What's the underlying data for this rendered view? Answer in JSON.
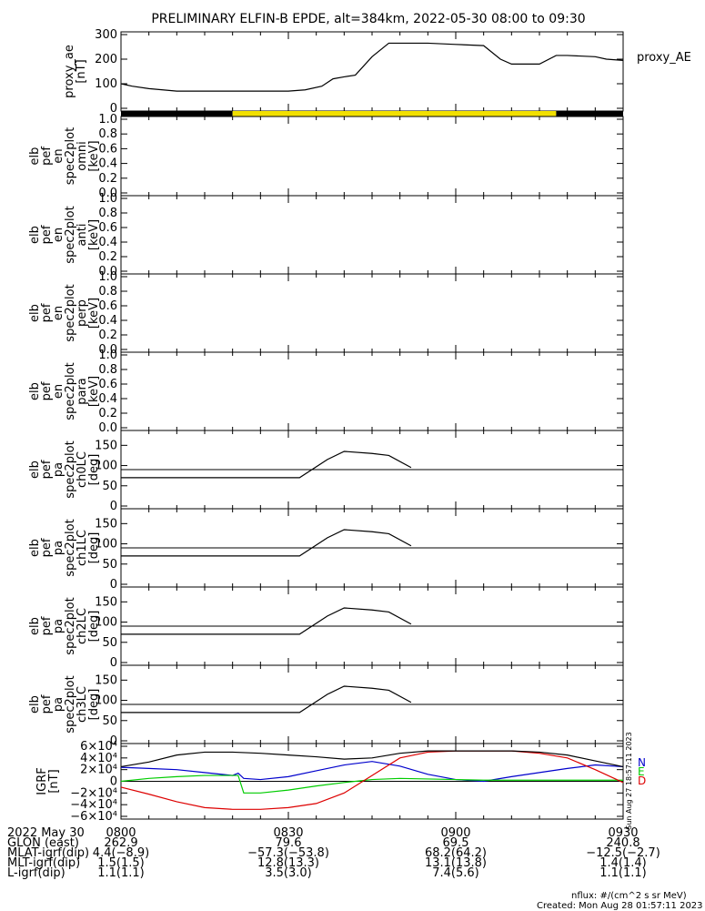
{
  "title": "PRELIMINARY ELFIN-B EPDE, alt=384km, 2022-05-30 08:00 to 09:30",
  "colors": {
    "axis": "#000000",
    "science_bar": "#f2e000",
    "no_science_bar": "#000000",
    "field_N": "#0000cc",
    "field_E": "#00cc00",
    "field_D": "#dd0000",
    "field_total": "#000000"
  },
  "chart_data": [
    {
      "id": "proxy_ae",
      "type": "line",
      "ylabel": [
        "proxy_ae",
        "[nT]"
      ],
      "legend": "proxy_AE",
      "ylim": [
        0,
        300
      ],
      "yticks": [
        0,
        100,
        200,
        300
      ],
      "x": [
        0,
        2,
        5,
        10,
        15,
        20,
        25,
        30,
        33,
        36,
        38,
        40,
        42,
        45,
        48,
        50,
        52,
        55,
        60,
        65,
        68,
        70,
        72,
        75,
        78,
        80,
        85,
        87,
        90
      ],
      "y": [
        100,
        90,
        80,
        70,
        70,
        70,
        70,
        70,
        75,
        90,
        120,
        128,
        135,
        210,
        265,
        265,
        265,
        265,
        260,
        255,
        200,
        180,
        180,
        180,
        215,
        215,
        210,
        200,
        195
      ]
    },
    {
      "id": "science_bar",
      "type": "bar",
      "segments": [
        {
          "x0": 0,
          "x1": 20,
          "state": "black"
        },
        {
          "x0": 20,
          "x1": 78,
          "state": "yellow"
        },
        {
          "x0": 78,
          "x1": 90,
          "state": "black"
        }
      ]
    },
    {
      "id": "omni",
      "type": "heatmap",
      "ylabel": [
        "elb",
        "pef",
        "en",
        "spec2plot",
        "omni",
        "[keV]"
      ],
      "ylim": [
        0,
        1
      ],
      "yticks": [
        0,
        0.2,
        0.4,
        0.6,
        0.8,
        1.0
      ],
      "tick_labels": [
        "0.0",
        "0.2",
        "0.4",
        "0.6",
        "0.8",
        "1.0"
      ]
    },
    {
      "id": "anti",
      "type": "heatmap",
      "ylabel": [
        "elb",
        "pef",
        "en",
        "spec2plot",
        "anti",
        "[keV]"
      ],
      "ylim": [
        0,
        1
      ],
      "yticks": [
        0,
        0.2,
        0.4,
        0.6,
        0.8,
        1.0
      ],
      "tick_labels": [
        "0.0",
        "0.2",
        "0.4",
        "0.6",
        "0.8",
        "1.0"
      ]
    },
    {
      "id": "perp",
      "type": "heatmap",
      "ylabel": [
        "elb",
        "pef",
        "en",
        "spec2plot",
        "perp",
        "[keV]"
      ],
      "ylim": [
        0,
        1
      ],
      "yticks": [
        0,
        0.2,
        0.4,
        0.6,
        0.8,
        1.0
      ],
      "tick_labels": [
        "0.0",
        "0.2",
        "0.4",
        "0.6",
        "0.8",
        "1.0"
      ]
    },
    {
      "id": "para",
      "type": "heatmap",
      "ylabel": [
        "elb",
        "pef",
        "en",
        "spec2plot",
        "para",
        "[keV]"
      ],
      "ylim": [
        0,
        1
      ],
      "yticks": [
        0,
        0.2,
        0.4,
        0.6,
        0.8,
        1.0
      ],
      "tick_labels": [
        "0.0",
        "0.2",
        "0.4",
        "0.6",
        "0.8",
        "1.0"
      ]
    },
    {
      "id": "ch0LC",
      "type": "line",
      "ylabel": [
        "elb",
        "pef",
        "pa",
        "spec2plot",
        "ch0LC",
        "[deg]"
      ],
      "ylim": [
        0,
        180
      ],
      "yticks": [
        0,
        50,
        100,
        150
      ],
      "hline": 90,
      "x": [
        0,
        20,
        32,
        37,
        40,
        45,
        48,
        52
      ],
      "y": [
        70,
        70,
        70,
        115,
        135,
        130,
        125,
        95
      ]
    },
    {
      "id": "ch1LC",
      "type": "line",
      "ylabel": [
        "elb",
        "pef",
        "pa",
        "spec2plot",
        "ch1LC",
        "[deg]"
      ],
      "ylim": [
        0,
        180
      ],
      "yticks": [
        0,
        50,
        100,
        150
      ],
      "hline": 90,
      "x": [
        0,
        20,
        32,
        37,
        40,
        45,
        48,
        52
      ],
      "y": [
        70,
        70,
        70,
        115,
        135,
        130,
        125,
        95
      ]
    },
    {
      "id": "ch2LC",
      "type": "line",
      "ylabel": [
        "elb",
        "pef",
        "pa",
        "spec2plot",
        "ch2LC",
        "[deg]"
      ],
      "ylim": [
        0,
        180
      ],
      "yticks": [
        0,
        50,
        100,
        150
      ],
      "hline": 90,
      "x": [
        0,
        20,
        32,
        37,
        40,
        45,
        48,
        52
      ],
      "y": [
        70,
        70,
        70,
        115,
        135,
        130,
        125,
        95
      ]
    },
    {
      "id": "ch3LC",
      "type": "line",
      "ylabel": [
        "elb",
        "pef",
        "pa",
        "spec2plot",
        "ch3LC",
        "[deg]"
      ],
      "ylim": [
        0,
        180
      ],
      "yticks": [
        0,
        50,
        100,
        150
      ],
      "hline": 90,
      "x": [
        0,
        20,
        32,
        37,
        40,
        45,
        48,
        52
      ],
      "y": [
        70,
        70,
        70,
        115,
        135,
        130,
        125,
        95
      ]
    },
    {
      "id": "igrf",
      "type": "line",
      "ylabel": [
        "IGRF",
        "[nT]"
      ],
      "ylim": [
        -60000,
        60000
      ],
      "yticks": [
        -60000,
        -40000,
        -20000,
        0,
        20000,
        40000,
        60000
      ],
      "tick_labels": [
        "−6×10⁴",
        "−4×10⁴",
        "−2×10⁴",
        "0",
        "2×10⁴",
        "4×10⁴",
        "6×10⁴"
      ],
      "legend": [
        "N",
        "E",
        "D"
      ],
      "series": [
        {
          "name": "N",
          "x": [
            0,
            5,
            10,
            15,
            20,
            21,
            22,
            25,
            30,
            35,
            40,
            45,
            50,
            55,
            60,
            65,
            70,
            75,
            80,
            85,
            90
          ],
          "y": [
            24000,
            22000,
            20000,
            15000,
            10000,
            14000,
            5000,
            3000,
            8000,
            18000,
            28000,
            34000,
            26000,
            12000,
            3000,
            0,
            8000,
            15000,
            22000,
            28000,
            25000
          ]
        },
        {
          "name": "E",
          "x": [
            0,
            5,
            10,
            15,
            20,
            21,
            22,
            25,
            30,
            35,
            40,
            45,
            50,
            55,
            60,
            65,
            70,
            75,
            80,
            85,
            90
          ],
          "y": [
            0,
            5000,
            8000,
            10000,
            10000,
            10000,
            -20000,
            -20000,
            -15000,
            -8000,
            -2000,
            3000,
            5000,
            4000,
            3000,
            2000,
            2000,
            2000,
            2000,
            2000,
            2000
          ]
        },
        {
          "name": "D",
          "x": [
            0,
            5,
            10,
            15,
            20,
            25,
            30,
            35,
            40,
            45,
            50,
            55,
            60,
            65,
            70,
            75,
            80,
            85,
            90
          ],
          "y": [
            -10000,
            -22000,
            -35000,
            -45000,
            -48000,
            -48000,
            -45000,
            -38000,
            -20000,
            10000,
            40000,
            50000,
            52000,
            52000,
            52000,
            48000,
            40000,
            20000,
            -2000
          ]
        },
        {
          "name": "total",
          "x": [
            0,
            5,
            10,
            15,
            20,
            25,
            30,
            35,
            40,
            45,
            50,
            55,
            60,
            65,
            70,
            75,
            80,
            85,
            90
          ],
          "y": [
            25000,
            33000,
            45000,
            50000,
            50000,
            48000,
            45000,
            42000,
            38000,
            40000,
            48000,
            52000,
            52000,
            52000,
            52000,
            50000,
            45000,
            35000,
            25000
          ]
        }
      ]
    }
  ],
  "x_axis": {
    "tick_labels": [
      "0800",
      "0830",
      "0900",
      "0930"
    ],
    "tick_minutes": [
      0,
      30,
      60,
      90
    ]
  },
  "footer_rows": [
    {
      "label": "2022 May 30",
      "values": [
        "0800",
        "0830",
        "0900",
        "0930"
      ]
    },
    {
      "label": "GLON (east)",
      "values": [
        "262.9",
        "79.6",
        "69.5",
        "240.8"
      ]
    },
    {
      "label": "MLAT-igrf(dip)",
      "values": [
        "4.4(−8.9)",
        "−57.3(−53.8)",
        "68.2(64.2)",
        "−12.5(−2.7)"
      ]
    },
    {
      "label": "MLT-igrf(dip)",
      "values": [
        "1.5(1.5)",
        "12.8(13.3)",
        "13.1(13.8)",
        "1.4(1.4)"
      ]
    },
    {
      "label": "L-igrf(dip)",
      "values": [
        "1.1(1.1)",
        "3.5(3.0)",
        "7.4(5.6)",
        "1.1(1.1)"
      ]
    }
  ],
  "notes": {
    "nflux": "nflux: #/(cm^2 s sr MeV)",
    "created": "Created: Mon Aug 28 01:57:11 2023",
    "side_stamp": "Sun Aug 27 18:57:11 2023"
  }
}
